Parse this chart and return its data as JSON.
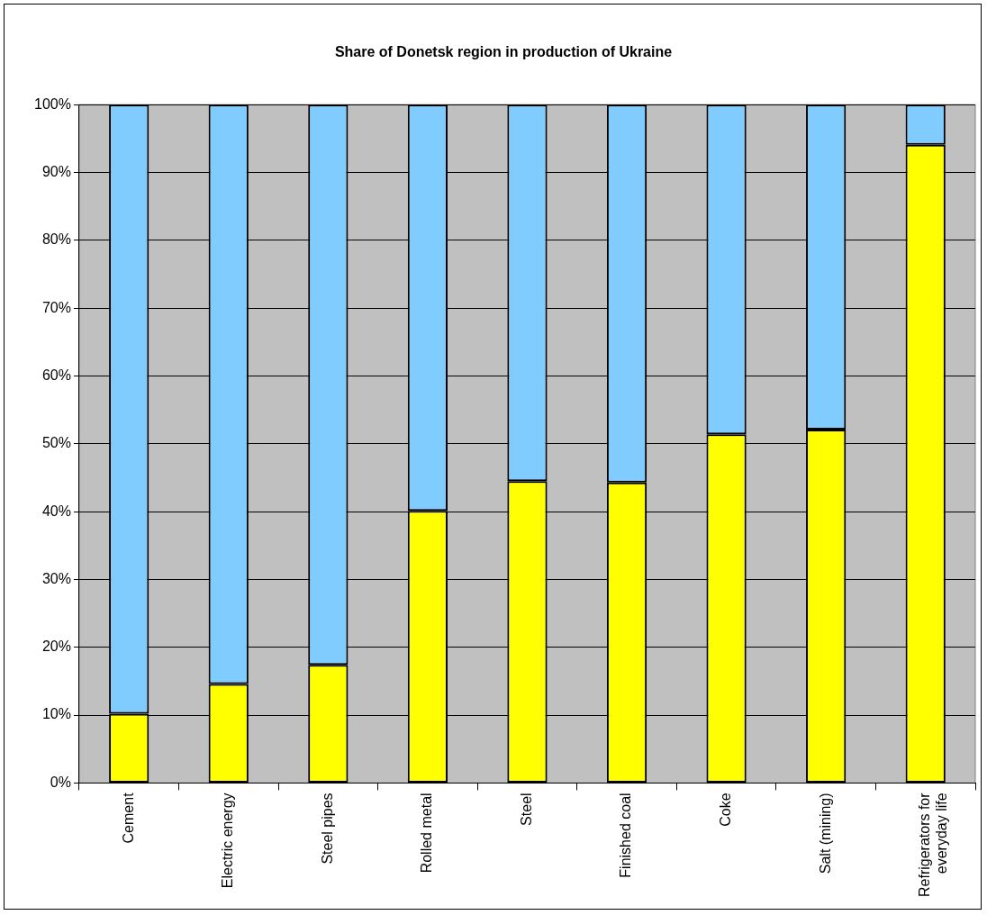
{
  "chart_data": {
    "type": "bar",
    "title": "Share of Donetsk region in production of Ukraine",
    "categories": [
      "Cement",
      "Electric energy",
      "Steel pipes",
      "Rolled metal",
      "Steel",
      "Finished coal",
      "Coke",
      "Salt (mining)",
      "Refrigerators for everyday life"
    ],
    "stacked": true,
    "series": [
      {
        "color": "#ffff00",
        "values": [
          10.2,
          14.6,
          17.4,
          40.1,
          44.5,
          44.3,
          51.4,
          52.1,
          94.1
        ]
      },
      {
        "color": "#80ccff",
        "values": [
          89.8,
          85.4,
          82.6,
          59.9,
          55.5,
          55.7,
          48.6,
          47.9,
          5.9
        ]
      }
    ],
    "ylim": [
      0,
      100
    ],
    "yticks": [
      {
        "value": 0,
        "label": "0%"
      },
      {
        "value": 10,
        "label": "10%"
      },
      {
        "value": 20,
        "label": "20%"
      },
      {
        "value": 30,
        "label": "30%"
      },
      {
        "value": 40,
        "label": "40%"
      },
      {
        "value": 50,
        "label": "50%"
      },
      {
        "value": 60,
        "label": "60%"
      },
      {
        "value": 70,
        "label": "70%"
      },
      {
        "value": 80,
        "label": "80%"
      },
      {
        "value": 90,
        "label": "90%"
      },
      {
        "value": 100,
        "label": "100%"
      }
    ],
    "grid": "y",
    "legend": false
  }
}
